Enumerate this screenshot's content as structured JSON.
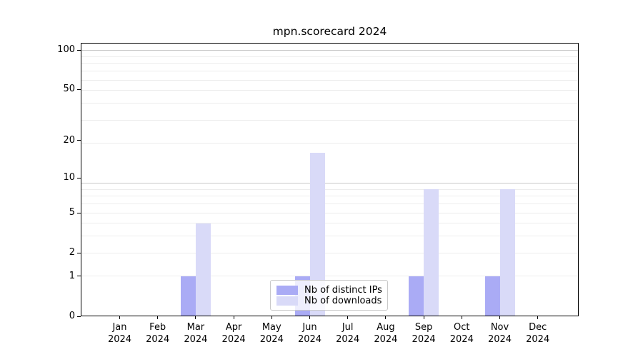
{
  "chart_data": {
    "type": "bar",
    "title": "mpn.scorecard 2024",
    "x_tick_year": "2024",
    "categories": [
      "Jan",
      "Feb",
      "Mar",
      "Apr",
      "May",
      "Jun",
      "Jul",
      "Aug",
      "Sep",
      "Oct",
      "Nov",
      "Dec"
    ],
    "series": [
      {
        "name": "Nb of distinct IPs",
        "color": "#aaabf5",
        "values": [
          0,
          0,
          1,
          0,
          0,
          1,
          0,
          0,
          1,
          0,
          1,
          0
        ]
      },
      {
        "name": "Nb of downloads",
        "color": "#d9daf8",
        "values": [
          0,
          0,
          4,
          0,
          0,
          16,
          0,
          0,
          8,
          0,
          8,
          0
        ]
      }
    ],
    "yscale": "log1p",
    "ytick_values": [
      0,
      1,
      2,
      5,
      10,
      20,
      50,
      100
    ],
    "ylim": [
      0,
      114
    ],
    "xlabel": "",
    "ylabel": "",
    "grid": true,
    "legend": {
      "position": "lower center",
      "entries": [
        "Nb of distinct IPs",
        "Nb of downloads"
      ]
    }
  }
}
